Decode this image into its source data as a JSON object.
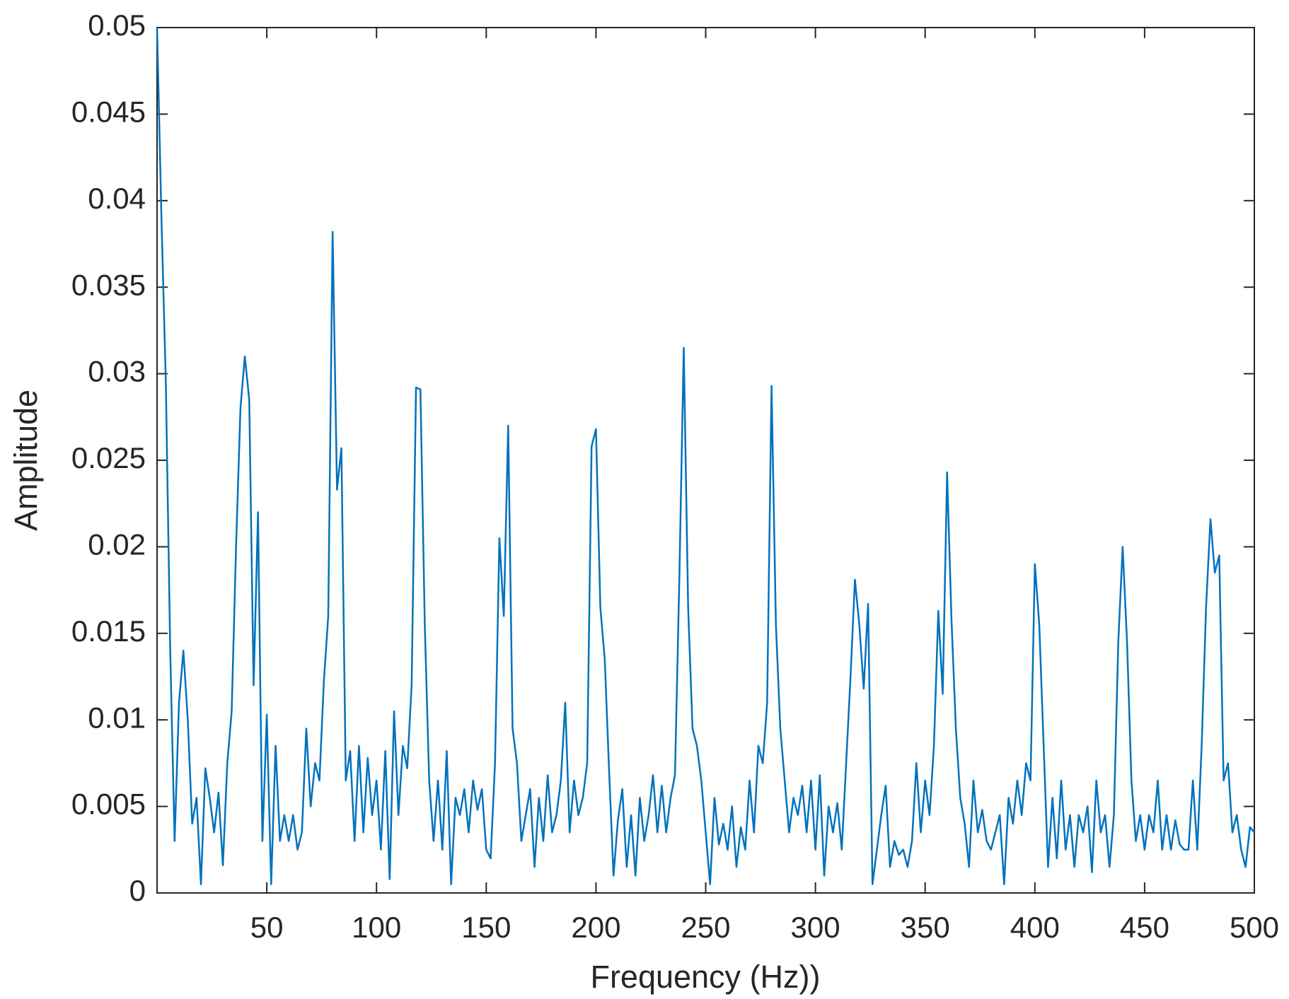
{
  "chart_data": {
    "type": "line",
    "xlabel": "Frequency (Hz))",
    "ylabel": "Amplitude",
    "xlim": [
      0,
      500
    ],
    "xticks": [
      50,
      100,
      150,
      200,
      250,
      300,
      350,
      400,
      450,
      500
    ],
    "ylim": [
      0,
      0.05
    ],
    "yticks": [
      0,
      0.005,
      0.01,
      0.015,
      0.02,
      0.025,
      0.03,
      0.035,
      0.04,
      0.045,
      0.05
    ],
    "grid": false,
    "x": [
      0,
      2,
      4,
      6,
      8,
      10,
      12,
      14,
      16,
      18,
      20,
      22,
      24,
      26,
      28,
      30,
      32,
      34,
      36,
      38,
      40,
      42,
      44,
      46,
      48,
      50,
      52,
      54,
      56,
      58,
      60,
      62,
      64,
      66,
      68,
      70,
      72,
      74,
      76,
      78,
      80,
      82,
      84,
      86,
      88,
      90,
      92,
      94,
      96,
      98,
      100,
      102,
      104,
      106,
      108,
      110,
      112,
      114,
      116,
      118,
      120,
      122,
      124,
      126,
      128,
      130,
      132,
      134,
      136,
      138,
      140,
      142,
      144,
      146,
      148,
      150,
      152,
      154,
      156,
      158,
      160,
      162,
      164,
      166,
      168,
      170,
      172,
      174,
      176,
      178,
      180,
      182,
      184,
      186,
      188,
      190,
      192,
      194,
      196,
      198,
      200,
      202,
      204,
      206,
      208,
      210,
      212,
      214,
      216,
      218,
      220,
      222,
      224,
      226,
      228,
      230,
      232,
      234,
      236,
      238,
      240,
      242,
      244,
      246,
      248,
      250,
      252,
      254,
      256,
      258,
      260,
      262,
      264,
      266,
      268,
      270,
      272,
      274,
      276,
      278,
      280,
      282,
      284,
      286,
      288,
      290,
      292,
      294,
      296,
      298,
      300,
      302,
      304,
      306,
      308,
      310,
      312,
      314,
      316,
      318,
      320,
      322,
      324,
      326,
      328,
      330,
      332,
      334,
      336,
      338,
      340,
      342,
      344,
      346,
      348,
      350,
      352,
      354,
      356,
      358,
      360,
      362,
      364,
      366,
      368,
      370,
      372,
      374,
      376,
      378,
      380,
      382,
      384,
      386,
      388,
      390,
      392,
      394,
      396,
      398,
      400,
      402,
      404,
      406,
      408,
      410,
      412,
      414,
      416,
      418,
      420,
      422,
      424,
      426,
      428,
      430,
      432,
      434,
      436,
      438,
      440,
      442,
      444,
      446,
      448,
      450,
      452,
      454,
      456,
      458,
      460,
      462,
      464,
      466,
      468,
      470,
      472,
      474,
      476,
      478,
      480,
      482,
      484,
      486,
      488,
      490,
      492,
      494,
      496,
      498,
      500
    ],
    "series": [
      {
        "color": "#0072bd",
        "values": [
          0.05,
          0.039,
          0.0295,
          0.014,
          0.003,
          0.011,
          0.014,
          0.01,
          0.004,
          0.0055,
          0.0005,
          0.0072,
          0.0055,
          0.0035,
          0.0058,
          0.0016,
          0.0075,
          0.0105,
          0.02,
          0.028,
          0.031,
          0.0285,
          0.012,
          0.022,
          0.003,
          0.0103,
          0.0005,
          0.0085,
          0.003,
          0.0045,
          0.003,
          0.0045,
          0.0025,
          0.0035,
          0.0095,
          0.005,
          0.0075,
          0.0065,
          0.0122,
          0.016,
          0.0382,
          0.0233,
          0.0257,
          0.0065,
          0.0082,
          0.003,
          0.0085,
          0.0035,
          0.0078,
          0.0045,
          0.0065,
          0.0025,
          0.0082,
          0.0008,
          0.0105,
          0.0045,
          0.0085,
          0.0072,
          0.012,
          0.0292,
          0.0291,
          0.0155,
          0.0065,
          0.003,
          0.0065,
          0.0025,
          0.0082,
          0.0005,
          0.0055,
          0.0045,
          0.006,
          0.0035,
          0.0065,
          0.0048,
          0.006,
          0.0025,
          0.002,
          0.0075,
          0.0205,
          0.016,
          0.027,
          0.0095,
          0.0075,
          0.003,
          0.0045,
          0.006,
          0.0015,
          0.0055,
          0.003,
          0.0068,
          0.0035,
          0.0045,
          0.0065,
          0.011,
          0.0035,
          0.0065,
          0.0045,
          0.0055,
          0.0075,
          0.0258,
          0.0268,
          0.0165,
          0.0135,
          0.007,
          0.001,
          0.0042,
          0.006,
          0.0015,
          0.0045,
          0.001,
          0.0055,
          0.003,
          0.0045,
          0.0068,
          0.0035,
          0.0062,
          0.0035,
          0.0055,
          0.0068,
          0.0182,
          0.0315,
          0.0165,
          0.0095,
          0.0085,
          0.0065,
          0.0035,
          0.0005,
          0.0055,
          0.0028,
          0.004,
          0.0025,
          0.005,
          0.0015,
          0.0038,
          0.0025,
          0.0065,
          0.0035,
          0.0085,
          0.0075,
          0.011,
          0.0293,
          0.0155,
          0.0095,
          0.0065,
          0.0035,
          0.0055,
          0.0045,
          0.0062,
          0.0035,
          0.0065,
          0.0025,
          0.0068,
          0.001,
          0.005,
          0.0035,
          0.0052,
          0.0025,
          0.0075,
          0.0125,
          0.0181,
          0.0155,
          0.0118,
          0.0167,
          0.0005,
          0.0025,
          0.0045,
          0.0062,
          0.0015,
          0.003,
          0.0022,
          0.0025,
          0.0015,
          0.003,
          0.0075,
          0.0035,
          0.0065,
          0.0045,
          0.0085,
          0.0163,
          0.0115,
          0.0243,
          0.0158,
          0.0095,
          0.0055,
          0.004,
          0.0015,
          0.0065,
          0.0035,
          0.0048,
          0.003,
          0.0025,
          0.0035,
          0.0045,
          0.0005,
          0.0055,
          0.004,
          0.0065,
          0.0045,
          0.0075,
          0.0065,
          0.019,
          0.0155,
          0.0085,
          0.0015,
          0.0055,
          0.002,
          0.0065,
          0.0025,
          0.0045,
          0.0015,
          0.0045,
          0.0035,
          0.005,
          0.0012,
          0.0065,
          0.0035,
          0.0045,
          0.0015,
          0.0045,
          0.0145,
          0.02,
          0.0145,
          0.0065,
          0.003,
          0.0045,
          0.0025,
          0.0045,
          0.0035,
          0.0065,
          0.0025,
          0.0045,
          0.0025,
          0.0042,
          0.0028,
          0.0025,
          0.0025,
          0.0065,
          0.0025,
          0.0085,
          0.0165,
          0.0216,
          0.0185,
          0.0195,
          0.0065,
          0.0075,
          0.0035,
          0.0045,
          0.0025,
          0.0015,
          0.0038,
          0.0035
        ]
      }
    ]
  }
}
